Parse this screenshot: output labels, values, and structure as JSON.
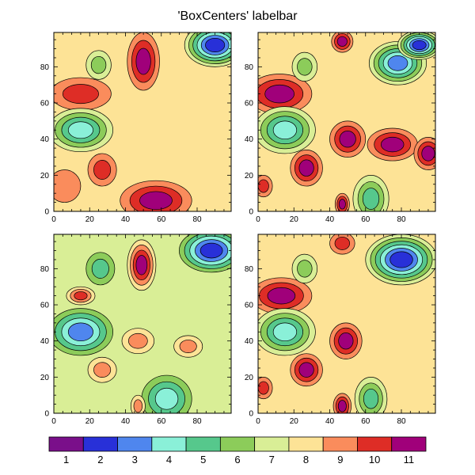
{
  "title": "'BoxCenters' labelbar",
  "labelbar": {
    "labels": [
      "1",
      "2",
      "3",
      "4",
      "5",
      "6",
      "7",
      "8",
      "9",
      "10",
      "11"
    ],
    "colors": [
      "#7a0f8a",
      "#2830d8",
      "#4f86ee",
      "#8af0d8",
      "#56c88c",
      "#8ccc5a",
      "#d9ee96",
      "#fde396",
      "#fa8c5c",
      "#de2d26",
      "#a0007a"
    ]
  },
  "chart_data": [
    {
      "type": "contour",
      "panel": "top-left",
      "xlim": [
        0,
        99
      ],
      "ylim": [
        0,
        99
      ],
      "xticks": [
        0,
        20,
        40,
        60,
        80
      ],
      "yticks": [
        0,
        20,
        40,
        60,
        80
      ],
      "xtick_labels": [
        "0",
        "20",
        "40",
        "60",
        "80"
      ],
      "ytick_labels": [
        "0",
        "20",
        "40",
        "60",
        "80"
      ],
      "background_level": 8,
      "features": [
        {
          "x": 50,
          "y": 83,
          "rx": 9,
          "ry": 16,
          "level": 11
        },
        {
          "x": 15,
          "y": 65,
          "rx": 17,
          "ry": 9,
          "level": 10
        },
        {
          "x": 15,
          "y": 45,
          "rx": 18,
          "ry": 12,
          "level": 4
        },
        {
          "x": 27,
          "y": 23,
          "rx": 8,
          "ry": 9,
          "level": 10
        },
        {
          "x": 57,
          "y": 6,
          "rx": 20,
          "ry": 11,
          "level": 11
        },
        {
          "x": 90,
          "y": 92,
          "rx": 17,
          "ry": 12,
          "level": 2
        },
        {
          "x": 25,
          "y": 81,
          "rx": 7,
          "ry": 8,
          "level": 6
        },
        {
          "x": 6,
          "y": 14,
          "rx": 9,
          "ry": 9,
          "level": 9
        }
      ]
    },
    {
      "type": "contour",
      "panel": "top-right",
      "xlim": [
        0,
        99
      ],
      "ylim": [
        0,
        99
      ],
      "xticks": [
        0,
        20,
        40,
        60,
        80
      ],
      "yticks": [
        0,
        20,
        40,
        60,
        80
      ],
      "xtick_labels": [
        "0",
        "20",
        "40",
        "60",
        "80"
      ],
      "ytick_labels": [
        "0",
        "20",
        "40",
        "60",
        "80"
      ],
      "background_level": 8,
      "features": [
        {
          "x": 12,
          "y": 65,
          "rx": 18,
          "ry": 11,
          "level": 11
        },
        {
          "x": 15,
          "y": 45,
          "rx": 17,
          "ry": 13,
          "level": 4
        },
        {
          "x": 27,
          "y": 24,
          "rx": 9,
          "ry": 10,
          "level": 11
        },
        {
          "x": 50,
          "y": 40,
          "rx": 10,
          "ry": 10,
          "level": 11
        },
        {
          "x": 75,
          "y": 37,
          "rx": 14,
          "ry": 9,
          "level": 11
        },
        {
          "x": 95,
          "y": 32,
          "rx": 8,
          "ry": 9,
          "level": 11
        },
        {
          "x": 78,
          "y": 82,
          "rx": 16,
          "ry": 12,
          "level": 3
        },
        {
          "x": 90,
          "y": 92,
          "rx": 12,
          "ry": 8,
          "level": 2
        },
        {
          "x": 47,
          "y": 94,
          "rx": 6,
          "ry": 6,
          "level": 11
        },
        {
          "x": 63,
          "y": 7,
          "rx": 10,
          "ry": 13,
          "level": 5
        },
        {
          "x": 47,
          "y": 4,
          "rx": 4,
          "ry": 6,
          "level": 11
        },
        {
          "x": 26,
          "y": 80,
          "rx": 7,
          "ry": 8,
          "level": 6
        },
        {
          "x": 3,
          "y": 14,
          "rx": 5,
          "ry": 6,
          "level": 10
        }
      ]
    },
    {
      "type": "contour",
      "panel": "bottom-left",
      "xlim": [
        0,
        99
      ],
      "ylim": [
        0,
        99
      ],
      "xticks": [
        0,
        20,
        40,
        60,
        80
      ],
      "yticks": [
        0,
        20,
        40,
        60,
        80
      ],
      "xtick_labels": [
        "0",
        "20",
        "40",
        "60",
        "80"
      ],
      "ytick_labels": [
        "0",
        "20",
        "40",
        "60",
        "80"
      ],
      "background_level": 7,
      "features": [
        {
          "x": 49,
          "y": 82,
          "rx": 8,
          "ry": 14,
          "level": 11
        },
        {
          "x": 15,
          "y": 65,
          "rx": 8,
          "ry": 5,
          "level": 10
        },
        {
          "x": 15,
          "y": 45,
          "rx": 18,
          "ry": 13,
          "level": 3
        },
        {
          "x": 27,
          "y": 24,
          "rx": 8,
          "ry": 7,
          "level": 9
        },
        {
          "x": 47,
          "y": 40,
          "rx": 9,
          "ry": 7,
          "level": 9
        },
        {
          "x": 75,
          "y": 37,
          "rx": 8,
          "ry": 6,
          "level": 9
        },
        {
          "x": 63,
          "y": 8,
          "rx": 14,
          "ry": 13,
          "level": 4
        },
        {
          "x": 88,
          "y": 90,
          "rx": 18,
          "ry": 12,
          "level": 2
        },
        {
          "x": 26,
          "y": 80,
          "rx": 8,
          "ry": 9,
          "level": 5
        },
        {
          "x": 47,
          "y": 4,
          "rx": 4,
          "ry": 6,
          "level": 9
        }
      ]
    },
    {
      "type": "contour",
      "panel": "bottom-right",
      "xlim": [
        0,
        99
      ],
      "ylim": [
        0,
        99
      ],
      "xticks": [
        0,
        20,
        40,
        60,
        80
      ],
      "yticks": [
        0,
        20,
        40,
        60,
        80
      ],
      "xtick_labels": [
        "0",
        "20",
        "40",
        "60",
        "80"
      ],
      "ytick_labels": [
        "0",
        "20",
        "40",
        "60",
        "80"
      ],
      "background_level": 8,
      "features": [
        {
          "x": 13,
          "y": 65,
          "rx": 17,
          "ry": 10,
          "level": 11
        },
        {
          "x": 15,
          "y": 45,
          "rx": 17,
          "ry": 13,
          "level": 4
        },
        {
          "x": 27,
          "y": 24,
          "rx": 9,
          "ry": 9,
          "level": 11
        },
        {
          "x": 49,
          "y": 40,
          "rx": 9,
          "ry": 10,
          "level": 11
        },
        {
          "x": 80,
          "y": 85,
          "rx": 20,
          "ry": 14,
          "level": 2
        },
        {
          "x": 47,
          "y": 94,
          "rx": 7,
          "ry": 6,
          "level": 10
        },
        {
          "x": 63,
          "y": 8,
          "rx": 9,
          "ry": 12,
          "level": 5
        },
        {
          "x": 47,
          "y": 4,
          "rx": 5,
          "ry": 7,
          "level": 11
        },
        {
          "x": 26,
          "y": 80,
          "rx": 7,
          "ry": 8,
          "level": 6
        },
        {
          "x": 3,
          "y": 14,
          "rx": 5,
          "ry": 6,
          "level": 10
        }
      ]
    }
  ]
}
